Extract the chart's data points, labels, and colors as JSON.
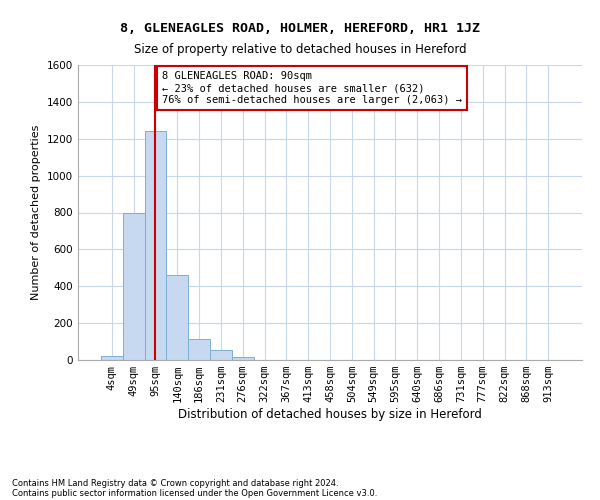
{
  "title": "8, GLENEAGLES ROAD, HOLMER, HEREFORD, HR1 1JZ",
  "subtitle": "Size of property relative to detached houses in Hereford",
  "xlabel": "Distribution of detached houses by size in Hereford",
  "ylabel": "Number of detached properties",
  "categories": [
    "4sqm",
    "49sqm",
    "95sqm",
    "140sqm",
    "186sqm",
    "231sqm",
    "276sqm",
    "322sqm",
    "367sqm",
    "413sqm",
    "458sqm",
    "504sqm",
    "549sqm",
    "595sqm",
    "640sqm",
    "686sqm",
    "731sqm",
    "777sqm",
    "822sqm",
    "868sqm",
    "913sqm"
  ],
  "values": [
    20,
    800,
    1240,
    460,
    115,
    55,
    18,
    0,
    0,
    0,
    0,
    0,
    0,
    0,
    0,
    0,
    0,
    0,
    0,
    0,
    0
  ],
  "bar_color": "#c6d9f0",
  "bar_edge_color": "#7bafd4",
  "ylim": [
    0,
    1600
  ],
  "yticks": [
    0,
    200,
    400,
    600,
    800,
    1000,
    1200,
    1400,
    1600
  ],
  "property_line_x": 2,
  "property_line_color": "#cc0000",
  "annotation_text": "8 GLENEAGLES ROAD: 90sqm\n← 23% of detached houses are smaller (632)\n76% of semi-detached houses are larger (2,063) →",
  "annotation_box_color": "#cc0000",
  "footer_line1": "Contains HM Land Registry data © Crown copyright and database right 2024.",
  "footer_line2": "Contains public sector information licensed under the Open Government Licence v3.0.",
  "bg_color": "#ffffff",
  "grid_color": "#c8d8e8",
  "title_fontsize": 9.5,
  "subtitle_fontsize": 8.5,
  "ylabel_fontsize": 8,
  "xlabel_fontsize": 8.5,
  "tick_fontsize": 7.5,
  "ann_fontsize": 7.5,
  "footer_fontsize": 6
}
